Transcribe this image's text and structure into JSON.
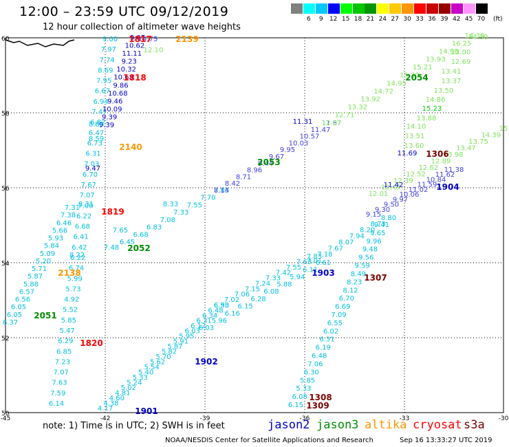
{
  "header": {
    "title": "12:00 – 23:59 UTC 09/12/2019",
    "subtitle": "12 hour collection of altimeter wave heights"
  },
  "colorbar": {
    "unit": "(ft)",
    "bins": [
      {
        "label": "3",
        "color": "#808080"
      },
      {
        "label": "6",
        "color": "#00ffff"
      },
      {
        "label": "9",
        "color": "#00c8ff"
      },
      {
        "label": "12",
        "color": "#0000ff"
      },
      {
        "label": "15",
        "color": "#00ff00"
      },
      {
        "label": "18",
        "color": "#00c800"
      },
      {
        "label": "21",
        "color": "#009600"
      },
      {
        "label": "24",
        "color": "#ffff00"
      },
      {
        "label": "27",
        "color": "#ffc800"
      },
      {
        "label": "30",
        "color": "#ff9600"
      },
      {
        "label": "33",
        "color": "#ff0000"
      },
      {
        "label": "36",
        "color": "#c80000"
      },
      {
        "label": "39",
        "color": "#960000"
      },
      {
        "label": "42",
        "color": "#c800c8"
      },
      {
        "label": "45",
        "color": "#ff96ff"
      },
      {
        "label": "70",
        "color": "#000000"
      }
    ]
  },
  "axes": {
    "lat_labels": [
      "60",
      "58",
      "56",
      "54",
      "52",
      "50"
    ],
    "lon_labels": [
      "-45",
      "-42",
      "-39",
      "-36",
      "-33",
      "-30"
    ]
  },
  "colors": {
    "jason2": "#0000c8",
    "jason3_light": "#7ee35a",
    "jason3_dark": "#008c00",
    "altika": "#ff9600",
    "cryosat": "#ff0000",
    "s3a": "#7a0000",
    "jason2_light": "#00c0e0",
    "jason2_mid": "#4040e0"
  },
  "tracks": [
    {
      "id": "t1",
      "color": "#00c0e0",
      "font": 10,
      "start": [
        153,
        597
      ],
      "end": [
        322,
        447
      ],
      "values": [
        "4.17",
        "4.38",
        "4.60",
        "4.81",
        "5.02",
        "5.24",
        "5.33",
        "5.40",
        "5.54",
        "5.62",
        "5.70",
        "5.82",
        "5.87",
        "5.91",
        "5.95",
        "6.03",
        "6.12",
        "6.31",
        "6.34",
        "6.48",
        "6.58"
      ]
    },
    {
      "id": "t2",
      "color": "#00c0e0",
      "font": 10,
      "start": [
        322,
        447
      ],
      "end": [
        457,
        376
      ],
      "values": [
        "6.93",
        "7.02",
        "7.06",
        "7.15",
        "7.24",
        "7.33",
        "7.42",
        "7.55",
        "7.63",
        "7.83"
      ]
    },
    {
      "id": "t3",
      "color": "#00c0e0",
      "font": 10,
      "start": [
        300,
        480
      ],
      "end": [
        470,
        385
      ],
      "values": [
        "6.03",
        "5.96",
        "6.16",
        "6.15",
        "6.28",
        "6.08",
        "5.88",
        "5.94",
        "6.11",
        "6.61"
      ]
    },
    {
      "id": "t4",
      "color": "#00c0e0",
      "font": 10,
      "start": [
        185,
        355
      ],
      "end": [
        322,
        280
      ],
      "values": [
        "6.45",
        "6.68",
        "6.83",
        "7.08",
        "7.33",
        "7.55",
        "7.70",
        "7.85"
      ]
    },
    {
      "id": "t5",
      "color": "#4040e0",
      "font": 10,
      "start": [
        322,
        280
      ],
      "end": [
        482,
        182
      ],
      "values": [
        "8.14",
        "8.42",
        "8.71",
        "8.96",
        "9.44",
        "9.67",
        "9.95",
        "10.03",
        "10.57",
        "11.47",
        "11.87"
      ]
    },
    {
      "id": "t6",
      "color": "#7ee35a",
      "font": 10,
      "start": [
        482,
        182
      ],
      "end": [
        690,
        55
      ],
      "values": [
        "12.07",
        "12.71",
        "13.32",
        "13.92",
        "14.72",
        "14.95",
        "15.30",
        "15.21",
        "13.93",
        "14.98",
        "16.25",
        "14.30"
      ]
    },
    {
      "id": "t7",
      "color": "#7ee35a",
      "font": 10,
      "start": [
        550,
        285
      ],
      "end": [
        732,
        190
      ],
      "values": [
        "12.01",
        "12.49",
        "12.39",
        "12.52",
        "12.62",
        "12.89",
        "13.98",
        "13.47",
        "13.75",
        "14.39",
        "15"
      ]
    },
    {
      "id": "t8",
      "color": "#00c0e0",
      "font": 10,
      "start": [
        457,
        382
      ],
      "end": [
        565,
        320
      ],
      "values": [
        "7.01",
        "7.18",
        "7.67",
        "8.07",
        "7.94",
        "8.20",
        "8.73",
        "8.80"
      ]
    },
    {
      "id": "t9",
      "color": "#4040e0",
      "font": 10,
      "start": [
        543,
        315
      ],
      "end": [
        660,
        250
      ],
      "values": [
        "9.15",
        "9.30",
        "9.50",
        "9.97",
        "10.06",
        "11.02",
        "11.59",
        "10.84",
        "11.62",
        "11.38"
      ]
    },
    {
      "id": "t10",
      "color": "#00c0e0",
      "font": 10,
      "start": [
        430,
        592
      ],
      "end": [
        555,
        330
      ],
      "values": [
        "6.15",
        "6.08",
        "5.33",
        "5.85",
        "6.30",
        "7.06",
        "6.48",
        "6.19",
        "6.31",
        "6.02",
        "6.55",
        "7.09",
        "6.69",
        "6.70",
        "8.12",
        "8.23",
        "8.49",
        "9.59",
        "9.56",
        "9.48",
        "9.96",
        "9.65",
        "9.41"
      ]
    },
    {
      "id": "t11",
      "color": "#00c0e0",
      "font": 10,
      "start": [
        82,
        590
      ],
      "end": [
        160,
        60
      ],
      "values": [
        "6.14",
        "7.59",
        "7.63",
        "7.07",
        "7.23",
        "6.85",
        "6.29",
        "5.47",
        "5.85",
        "5.52",
        "4.92",
        "5.73",
        "5.99",
        "6.74",
        "6.22",
        "6.42",
        "6.41",
        "6.68",
        "6.22",
        "7.00",
        "7.07",
        "7.67",
        "6.70",
        "7.03",
        "6.31",
        "6.73",
        "6.47",
        "6.82",
        "7.47",
        "6.94",
        "6.67",
        "7.95",
        "8.69",
        "7.74",
        "7.97",
        "9.00"
      ]
    },
    {
      "id": "t12",
      "color": "#00c0e0",
      "font": 10,
      "start": [
        15,
        472
      ],
      "end": [
        105,
        305
      ],
      "values": [
        "6.37",
        "6.05",
        "6.05",
        "6.56",
        "6.57",
        "5.88",
        "5.87",
        "5.71",
        "5.20",
        "5.09",
        "5.84",
        "5.93",
        "5.66",
        "6.46",
        "7.38",
        "7.31"
      ]
    },
    {
      "id": "t13",
      "color": "#0000c8",
      "font": 10,
      "start": [
        155,
        185
      ],
      "end": [
        200,
        58
      ],
      "values": [
        "9.39",
        "9.39",
        "10.09",
        "9.46",
        "10.68",
        "9.86",
        "10.63",
        "10.32",
        "9.23",
        "11.11",
        "10.62",
        "9.07"
      ]
    }
  ],
  "stations": [
    {
      "id": "1817",
      "label": "1817",
      "color": "#ff0000"
    },
    {
      "id": "2139",
      "label": "2139",
      "color": "#ff9600"
    },
    {
      "id": "1818",
      "label": "1818",
      "color": "#ff0000"
    },
    {
      "id": "2054",
      "label": "2054",
      "color": "#008c00"
    },
    {
      "id": "2140",
      "label": "2140",
      "color": "#ff9600"
    },
    {
      "id": "1306",
      "label": "1306",
      "color": "#7a0000"
    },
    {
      "id": "2053",
      "label": "2053",
      "color": "#008c00"
    },
    {
      "id": "1904",
      "label": "1904",
      "color": "#0000c8"
    },
    {
      "id": "1819",
      "label": "1819",
      "color": "#ff0000"
    },
    {
      "id": "2052",
      "label": "2052",
      "color": "#008c00"
    },
    {
      "id": "1903",
      "label": "1903",
      "color": "#0000c8"
    },
    {
      "id": "1307",
      "label": "1307",
      "color": "#7a0000"
    },
    {
      "id": "2138",
      "label": "2138",
      "color": "#ff9600"
    },
    {
      "id": "2051",
      "label": "2051",
      "color": "#008c00"
    },
    {
      "id": "1820",
      "label": "1820",
      "color": "#ff0000"
    },
    {
      "id": "1902",
      "label": "1902",
      "color": "#0000c8"
    },
    {
      "id": "1308",
      "label": "1308",
      "color": "#7a0000"
    },
    {
      "id": "1309",
      "label": "1309",
      "color": "#7a0000"
    },
    {
      "id": "1901",
      "label": "1901",
      "color": "#0000c8"
    }
  ],
  "extra_values": [
    {
      "text": "14.75",
      "color": "#4040e0"
    },
    {
      "text": "12.10",
      "color": "#7ee35a"
    },
    {
      "text": "13.00",
      "color": "#7ee35a"
    },
    {
      "text": "12.69",
      "color": "#7ee35a"
    },
    {
      "text": "13.41",
      "color": "#7ee35a"
    },
    {
      "text": "13.37",
      "color": "#7ee35a"
    },
    {
      "text": "13.50",
      "color": "#7ee35a"
    },
    {
      "text": "14.86",
      "color": "#7ee35a"
    },
    {
      "text": "15.23",
      "color": "#00c800"
    },
    {
      "text": "13.88",
      "color": "#7ee35a"
    },
    {
      "text": "14.10",
      "color": "#7ee35a"
    },
    {
      "text": "13.51",
      "color": "#7ee35a"
    },
    {
      "text": "13.60",
      "color": "#7ee35a"
    },
    {
      "text": "11.69",
      "color": "#0000c8"
    },
    {
      "text": "11.42",
      "color": "#0000c8"
    },
    {
      "text": "11.31",
      "color": "#0000c8"
    },
    {
      "text": "8.31",
      "color": "#00c0e0"
    },
    {
      "text": "7.48",
      "color": "#00c0e0"
    },
    {
      "text": "7.65",
      "color": "#00c0e0"
    },
    {
      "text": "8.83",
      "color": "#00c0e0"
    },
    {
      "text": "8.59",
      "color": "#00c0e0"
    },
    {
      "text": "9.47",
      "color": "#0000c8"
    },
    {
      "text": "8.33",
      "color": "#00c0e0"
    },
    {
      "text": "8.22",
      "color": "#00c0e0"
    },
    {
      "text": "14.30",
      "color": "#7ee35a"
    }
  ],
  "notes": {
    "note": "note:  1) Time is in UTC;  2) SWH is in feet",
    "jason2": "jason2",
    "jason3": "jason3",
    "altika": "altika",
    "cryosat": "cryosat",
    "s3a": "s3a",
    "credit": "NOAA/NESDIS Center for Satellite Applications and Research",
    "stamp": "Sep 16 13:33:27 UTC 2019"
  }
}
